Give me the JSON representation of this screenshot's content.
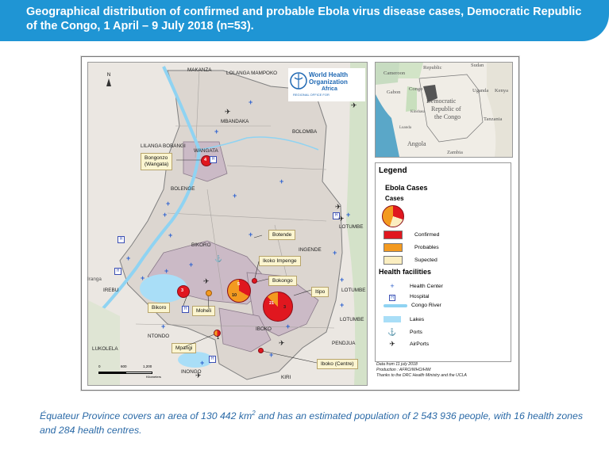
{
  "header": {
    "title": "Geographical distribution of confirmed and probable Ebola virus disease cases, Democratic Republic of the Congo, 1 April – 9 July 2018  (n=53)."
  },
  "map": {
    "north_label": "N",
    "place_labels": [
      "MAKANZA",
      "LOLANGA MAMPOKO",
      "MBANDAKA",
      "BOLOMBA",
      "LILANGA BOBANGI",
      "WANGATA",
      "BOLENGE",
      "BIKORO",
      "INGENDE",
      "LOTUMBE",
      "IREBU",
      "NTONDO",
      "IBOKO",
      "PENDJUA",
      "LUKOLELA",
      "INONGO",
      "KIRI",
      "Iranga"
    ],
    "callouts": [
      "Bongonzo\n(Wangata)",
      "Botende",
      "Ikoko Impenge",
      "Bokongo",
      "Itipo",
      "Bikoro",
      "Moheli",
      "Mpangi",
      "Iboko (Centre)"
    ],
    "pie_numbers": [
      "4",
      "3",
      "5",
      "10",
      "21",
      "3",
      "1"
    ],
    "scale": {
      "ticks": [
        "0",
        "600",
        "1,200"
      ],
      "unit": "Kilometers"
    },
    "logo": {
      "line1": "World Health",
      "line2": "Organization",
      "line3": "Africa",
      "sub": "REGIONAL OFFICE FOR"
    }
  },
  "inset": {
    "labels": [
      "Republic",
      "Sudan",
      "Cameroon",
      "Gabon",
      "Congo",
      "Uganda",
      "Kenya",
      "Democratic",
      "Republic of",
      "the Congo",
      "Tanzania",
      "Kinshasa",
      "Luanda",
      "Angola",
      "Zambia"
    ]
  },
  "legend": {
    "title": "Legend",
    "ebola_title": "Ebola Cases",
    "cases_label": "Cases",
    "items": [
      {
        "label": "Confirmed",
        "color": "#e0171f"
      },
      {
        "label": "Probables",
        "color": "#f39a20"
      },
      {
        "label": "Supected",
        "color": "#fbeec0"
      }
    ],
    "facilities_title": "Health facilities",
    "facilities": [
      {
        "label": "Health Center",
        "icon": "plus-icon"
      },
      {
        "label": "Hospital",
        "icon": "hospital-icon"
      },
      {
        "label": "Congo River",
        "icon": "river-icon",
        "color": "#8fd3f2"
      },
      {
        "label": "Lakes",
        "icon": "lake-icon",
        "color": "#a9def7"
      },
      {
        "label": "Ports",
        "icon": "port-icon"
      },
      {
        "label": "AirPorts",
        "icon": "airport-icon"
      }
    ]
  },
  "credits": {
    "line1": "Data from 11 july 2018",
    "line2": "Production : AFRO/WHO/HIM",
    "line3": "Thanks to the DRC Health Ministry and the UCLA"
  },
  "caption": {
    "text_before": "Équateur Province covers an area of 130 442 km",
    "sup": "2",
    "text_after": " and has an estimated population of 2 543 936 people, with 16 health zones and 284 health centres."
  }
}
